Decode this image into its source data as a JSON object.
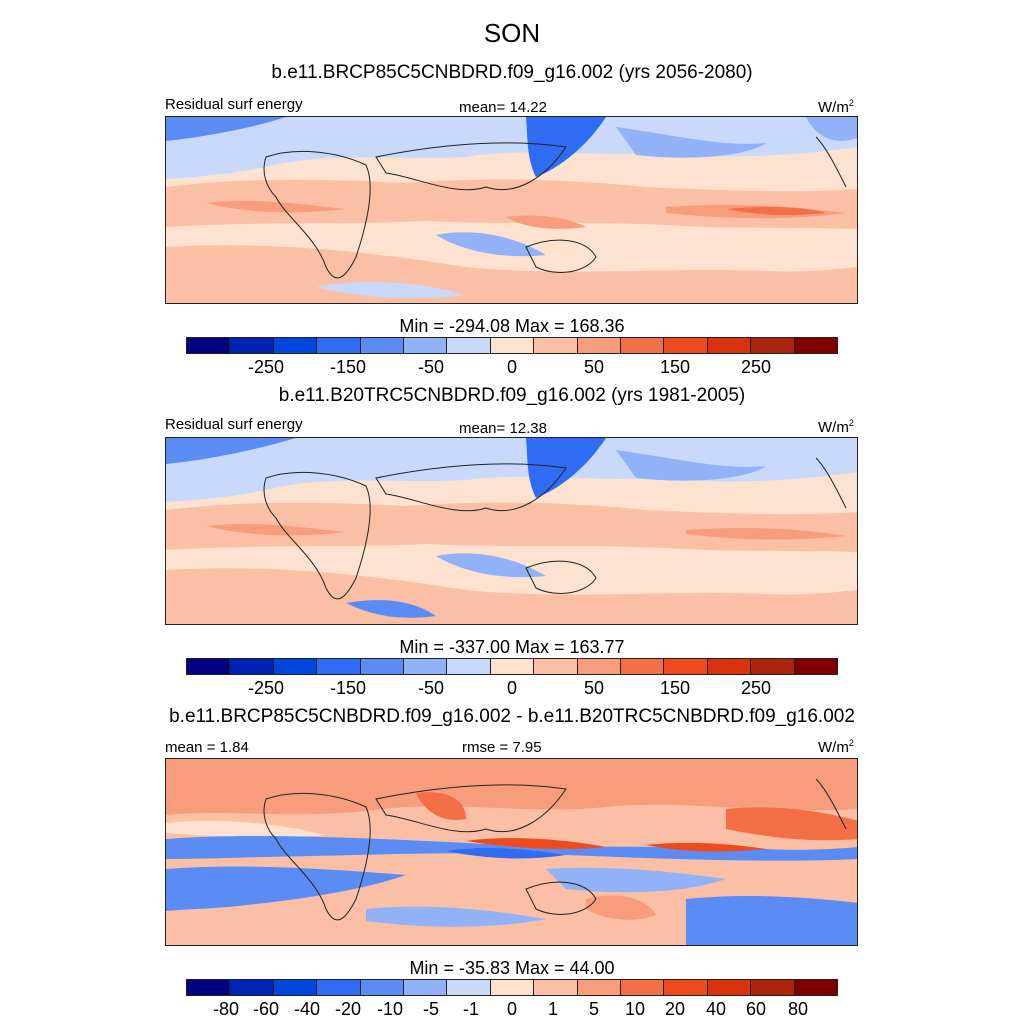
{
  "title": "SON",
  "colors": [
    "#000080",
    "#0023b4",
    "#0046dd",
    "#2f6cf3",
    "#5b8cf5",
    "#91b2f8",
    "#c9d9fc",
    "#fde3cf",
    "#fbbfa5",
    "#f79d7d",
    "#f36f45",
    "#ee4a1e",
    "#d8330d",
    "#aa230b",
    "#800000"
  ],
  "panels": [
    {
      "title": "b.e11.BRCP85C5CNBDRD.f09_g16.002 (yrs 2056-2080)",
      "left_label": "Residual surf energy",
      "center_label": "mean=  14.22",
      "units": "W/m",
      "units_sup": "2",
      "minmax": "Min = -294.08 Max = 168.36",
      "ticks": [
        "-250",
        "-150",
        "-50",
        "0",
        "50",
        "150",
        "250"
      ]
    },
    {
      "title": "b.e11.B20TRC5CNBDRD.f09_g16.002 (yrs 1981-2005)",
      "left_label": "Residual surf energy",
      "center_label": "mean=  12.38",
      "units": "W/m",
      "units_sup": "2",
      "minmax": "Min = -337.00 Max = 163.77",
      "ticks": [
        "-250",
        "-150",
        "-50",
        "0",
        "50",
        "150",
        "250"
      ]
    },
    {
      "title": "b.e11.BRCP85C5CNBDRD.f09_g16.002 - b.e11.B20TRC5CNBDRD.f09_g16.002",
      "left_label": "mean =   1.84",
      "center_label": "rmse =   7.95",
      "units": "W/m",
      "units_sup": "2",
      "minmax": "Min = -35.83 Max =  44.00",
      "ticks": [
        "-80",
        "-60",
        "-40",
        "-20",
        "-10",
        "-5",
        "-1",
        "0",
        "1",
        "5",
        "10",
        "20",
        "40",
        "60",
        "80"
      ]
    }
  ]
}
